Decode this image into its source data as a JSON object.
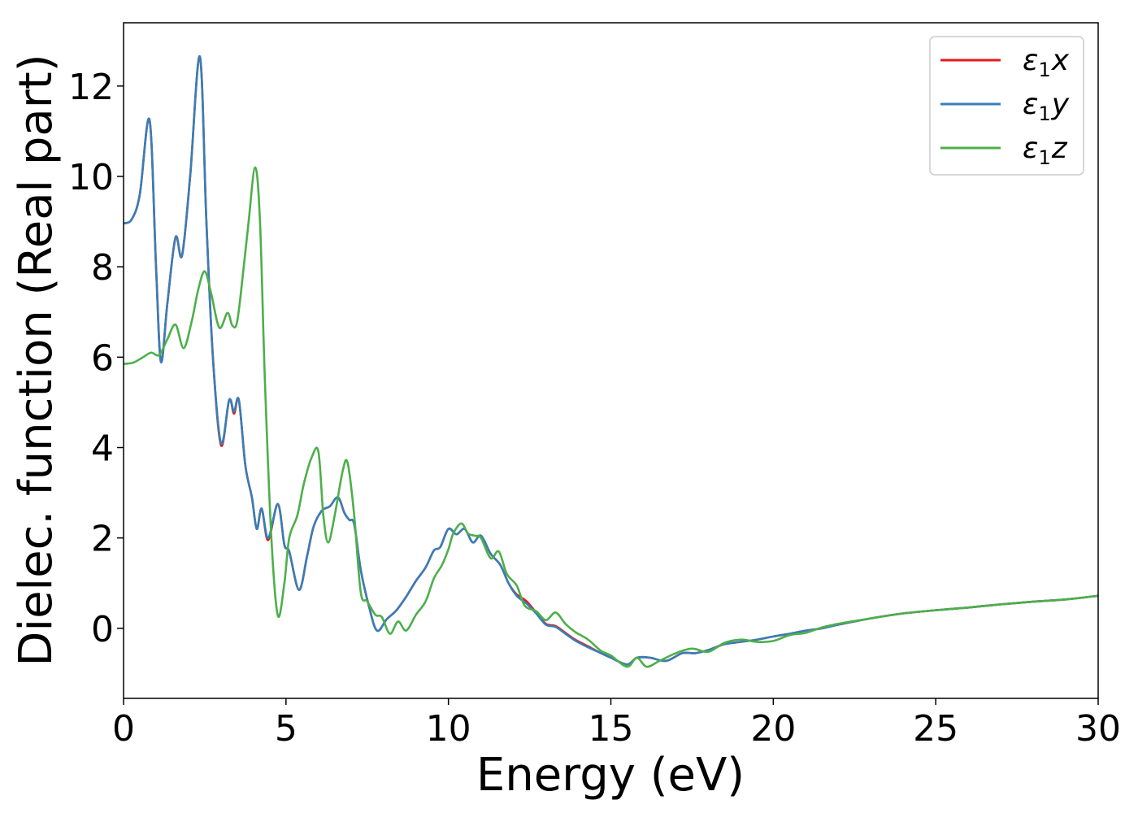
{
  "chart_data": {
    "type": "line",
    "xlabel": "Energy (eV)",
    "ylabel": "Dielec. function (Real part)",
    "xlim": [
      0,
      30
    ],
    "ylim": [
      -1.55,
      13.4
    ],
    "xticks": [
      0,
      5,
      10,
      15,
      20,
      25,
      30
    ],
    "yticks": [
      0,
      2,
      4,
      6,
      8,
      10,
      12
    ],
    "grid": false,
    "legend_position": "top-right",
    "series": [
      {
        "name": "ε1x",
        "legend_main": "ε",
        "legend_sub": "1",
        "legend_var": "x",
        "color": "#e41a1c",
        "points": [
          [
            0,
            8.96
          ],
          [
            0.25,
            9.05
          ],
          [
            0.5,
            9.6
          ],
          [
            0.8,
            11.25
          ],
          [
            1.0,
            8.0
          ],
          [
            1.15,
            5.9
          ],
          [
            1.35,
            7.2
          ],
          [
            1.6,
            8.65
          ],
          [
            1.8,
            8.25
          ],
          [
            2.05,
            10.0
          ],
          [
            2.35,
            12.65
          ],
          [
            2.55,
            9.0
          ],
          [
            2.75,
            6.0
          ],
          [
            3.0,
            4.05
          ],
          [
            3.25,
            5.05
          ],
          [
            3.4,
            4.75
          ],
          [
            3.55,
            5.05
          ],
          [
            3.75,
            3.6
          ],
          [
            3.95,
            2.9
          ],
          [
            4.1,
            2.2
          ],
          [
            4.25,
            2.65
          ],
          [
            4.45,
            1.95
          ],
          [
            4.75,
            2.75
          ],
          [
            4.95,
            1.85
          ],
          [
            5.1,
            1.7
          ],
          [
            5.4,
            0.85
          ],
          [
            5.65,
            1.6
          ],
          [
            5.85,
            2.25
          ],
          [
            6.1,
            2.6
          ],
          [
            6.35,
            2.7
          ],
          [
            6.6,
            2.9
          ],
          [
            6.8,
            2.55
          ],
          [
            6.95,
            2.4
          ],
          [
            7.1,
            2.3
          ],
          [
            7.3,
            1.3
          ],
          [
            7.55,
            0.5
          ],
          [
            7.8,
            -0.05
          ],
          [
            8.1,
            0.2
          ],
          [
            8.4,
            0.4
          ],
          [
            8.7,
            0.7
          ],
          [
            9.0,
            1.05
          ],
          [
            9.3,
            1.35
          ],
          [
            9.55,
            1.72
          ],
          [
            9.75,
            1.8
          ],
          [
            10.0,
            2.2
          ],
          [
            10.25,
            2.08
          ],
          [
            10.5,
            2.2
          ],
          [
            10.75,
            1.9
          ],
          [
            11.0,
            2.05
          ],
          [
            11.3,
            1.65
          ],
          [
            11.6,
            1.4
          ],
          [
            11.85,
            1.0
          ],
          [
            12.1,
            0.75
          ],
          [
            12.4,
            0.6
          ],
          [
            12.7,
            0.35
          ],
          [
            13.0,
            0.1
          ],
          [
            13.3,
            0.05
          ],
          [
            13.6,
            -0.1
          ],
          [
            13.9,
            -0.25
          ],
          [
            14.3,
            -0.4
          ],
          [
            14.7,
            -0.55
          ],
          [
            15.0,
            -0.65
          ],
          [
            15.5,
            -0.8
          ],
          [
            15.8,
            -0.65
          ],
          [
            16.2,
            -0.65
          ],
          [
            16.7,
            -0.72
          ],
          [
            17.2,
            -0.55
          ],
          [
            17.6,
            -0.55
          ],
          [
            18.0,
            -0.48
          ],
          [
            18.5,
            -0.35
          ],
          [
            19.0,
            -0.3
          ],
          [
            19.5,
            -0.25
          ],
          [
            20.0,
            -0.18
          ],
          [
            20.5,
            -0.12
          ],
          [
            21.0,
            -0.05
          ],
          [
            21.5,
            0.0
          ],
          [
            22.0,
            0.08
          ],
          [
            23.0,
            0.22
          ],
          [
            24.0,
            0.33
          ],
          [
            25.0,
            0.4
          ],
          [
            26.0,
            0.46
          ],
          [
            27.0,
            0.53
          ],
          [
            28.0,
            0.59
          ],
          [
            29.0,
            0.64
          ],
          [
            30.0,
            0.72
          ]
        ]
      },
      {
        "name": "ε1y",
        "legend_main": "ε",
        "legend_sub": "1",
        "legend_var": "y",
        "color": "#377eb8",
        "points": [
          [
            0,
            8.96
          ],
          [
            0.25,
            9.05
          ],
          [
            0.5,
            9.6
          ],
          [
            0.8,
            11.25
          ],
          [
            1.0,
            8.0
          ],
          [
            1.15,
            5.9
          ],
          [
            1.35,
            7.2
          ],
          [
            1.6,
            8.65
          ],
          [
            1.8,
            8.25
          ],
          [
            2.05,
            10.0
          ],
          [
            2.35,
            12.65
          ],
          [
            2.55,
            9.0
          ],
          [
            2.75,
            6.0
          ],
          [
            3.0,
            4.1
          ],
          [
            3.25,
            5.05
          ],
          [
            3.4,
            4.8
          ],
          [
            3.55,
            5.05
          ],
          [
            3.75,
            3.6
          ],
          [
            3.95,
            2.9
          ],
          [
            4.1,
            2.2
          ],
          [
            4.25,
            2.65
          ],
          [
            4.45,
            2.0
          ],
          [
            4.75,
            2.75
          ],
          [
            4.95,
            1.85
          ],
          [
            5.1,
            1.7
          ],
          [
            5.4,
            0.85
          ],
          [
            5.65,
            1.6
          ],
          [
            5.85,
            2.25
          ],
          [
            6.1,
            2.6
          ],
          [
            6.35,
            2.7
          ],
          [
            6.6,
            2.9
          ],
          [
            6.8,
            2.55
          ],
          [
            6.95,
            2.4
          ],
          [
            7.1,
            2.3
          ],
          [
            7.3,
            1.3
          ],
          [
            7.55,
            0.5
          ],
          [
            7.8,
            -0.05
          ],
          [
            8.1,
            0.2
          ],
          [
            8.4,
            0.4
          ],
          [
            8.7,
            0.7
          ],
          [
            9.0,
            1.05
          ],
          [
            9.3,
            1.35
          ],
          [
            9.55,
            1.72
          ],
          [
            9.75,
            1.8
          ],
          [
            10.0,
            2.2
          ],
          [
            10.25,
            2.08
          ],
          [
            10.5,
            2.2
          ],
          [
            10.75,
            1.9
          ],
          [
            11.0,
            2.05
          ],
          [
            11.3,
            1.65
          ],
          [
            11.6,
            1.4
          ],
          [
            11.85,
            1.0
          ],
          [
            12.1,
            0.72
          ],
          [
            12.4,
            0.55
          ],
          [
            12.7,
            0.33
          ],
          [
            13.0,
            0.08
          ],
          [
            13.3,
            0.03
          ],
          [
            13.6,
            -0.12
          ],
          [
            13.9,
            -0.27
          ],
          [
            14.3,
            -0.42
          ],
          [
            14.7,
            -0.55
          ],
          [
            15.0,
            -0.65
          ],
          [
            15.5,
            -0.8
          ],
          [
            15.8,
            -0.65
          ],
          [
            16.2,
            -0.65
          ],
          [
            16.7,
            -0.72
          ],
          [
            17.2,
            -0.55
          ],
          [
            17.6,
            -0.55
          ],
          [
            18.0,
            -0.48
          ],
          [
            18.5,
            -0.35
          ],
          [
            19.0,
            -0.3
          ],
          [
            19.5,
            -0.25
          ],
          [
            20.0,
            -0.18
          ],
          [
            20.5,
            -0.12
          ],
          [
            21.0,
            -0.05
          ],
          [
            21.5,
            0.0
          ],
          [
            22.0,
            0.08
          ],
          [
            23.0,
            0.22
          ],
          [
            24.0,
            0.33
          ],
          [
            25.0,
            0.4
          ],
          [
            26.0,
            0.46
          ],
          [
            27.0,
            0.53
          ],
          [
            28.0,
            0.59
          ],
          [
            29.0,
            0.64
          ],
          [
            30.0,
            0.72
          ]
        ]
      },
      {
        "name": "ε1z",
        "legend_main": "ε",
        "legend_sub": "1",
        "legend_var": "z",
        "color": "#4daf4a",
        "points": [
          [
            0,
            5.85
          ],
          [
            0.3,
            5.88
          ],
          [
            0.6,
            6.0
          ],
          [
            0.85,
            6.1
          ],
          [
            1.1,
            6.05
          ],
          [
            1.35,
            6.4
          ],
          [
            1.6,
            6.72
          ],
          [
            1.85,
            6.2
          ],
          [
            2.1,
            6.8
          ],
          [
            2.3,
            7.5
          ],
          [
            2.5,
            7.9
          ],
          [
            2.7,
            7.4
          ],
          [
            2.95,
            6.65
          ],
          [
            3.2,
            6.98
          ],
          [
            3.35,
            6.7
          ],
          [
            3.5,
            6.8
          ],
          [
            3.7,
            8.0
          ],
          [
            3.85,
            9.0
          ],
          [
            4.05,
            10.2
          ],
          [
            4.2,
            9.0
          ],
          [
            4.35,
            5.5
          ],
          [
            4.55,
            2.0
          ],
          [
            4.75,
            0.28
          ],
          [
            4.95,
            1.0
          ],
          [
            5.1,
            2.0
          ],
          [
            5.35,
            2.5
          ],
          [
            5.55,
            3.2
          ],
          [
            5.8,
            3.8
          ],
          [
            6.0,
            3.9
          ],
          [
            6.15,
            2.5
          ],
          [
            6.3,
            1.9
          ],
          [
            6.5,
            2.5
          ],
          [
            6.75,
            3.5
          ],
          [
            6.9,
            3.65
          ],
          [
            7.1,
            2.5
          ],
          [
            7.3,
            0.8
          ],
          [
            7.5,
            0.6
          ],
          [
            7.75,
            0.3
          ],
          [
            7.95,
            0.25
          ],
          [
            8.2,
            -0.12
          ],
          [
            8.45,
            0.15
          ],
          [
            8.7,
            -0.05
          ],
          [
            9.0,
            0.3
          ],
          [
            9.3,
            0.6
          ],
          [
            9.55,
            1.1
          ],
          [
            9.8,
            1.4
          ],
          [
            10.0,
            1.75
          ],
          [
            10.15,
            2.1
          ],
          [
            10.4,
            2.32
          ],
          [
            10.6,
            2.1
          ],
          [
            10.8,
            2.05
          ],
          [
            11.0,
            2.0
          ],
          [
            11.3,
            1.55
          ],
          [
            11.55,
            1.7
          ],
          [
            11.8,
            1.2
          ],
          [
            12.1,
            0.95
          ],
          [
            12.35,
            0.5
          ],
          [
            12.7,
            0.38
          ],
          [
            13.0,
            0.18
          ],
          [
            13.3,
            0.35
          ],
          [
            13.6,
            0.1
          ],
          [
            13.9,
            -0.08
          ],
          [
            14.3,
            -0.25
          ],
          [
            14.7,
            -0.5
          ],
          [
            15.0,
            -0.6
          ],
          [
            15.5,
            -0.85
          ],
          [
            15.8,
            -0.65
          ],
          [
            16.1,
            -0.85
          ],
          [
            16.5,
            -0.72
          ],
          [
            17.0,
            -0.55
          ],
          [
            17.5,
            -0.45
          ],
          [
            18.0,
            -0.52
          ],
          [
            18.5,
            -0.32
          ],
          [
            19.0,
            -0.25
          ],
          [
            19.5,
            -0.3
          ],
          [
            20.0,
            -0.28
          ],
          [
            20.5,
            -0.15
          ],
          [
            21.0,
            -0.1
          ],
          [
            21.5,
            0.02
          ],
          [
            22.0,
            0.1
          ],
          [
            23.0,
            0.22
          ],
          [
            24.0,
            0.33
          ],
          [
            25.0,
            0.4
          ],
          [
            26.0,
            0.46
          ],
          [
            27.0,
            0.53
          ],
          [
            28.0,
            0.59
          ],
          [
            29.0,
            0.64
          ],
          [
            30.0,
            0.72
          ]
        ]
      }
    ]
  }
}
